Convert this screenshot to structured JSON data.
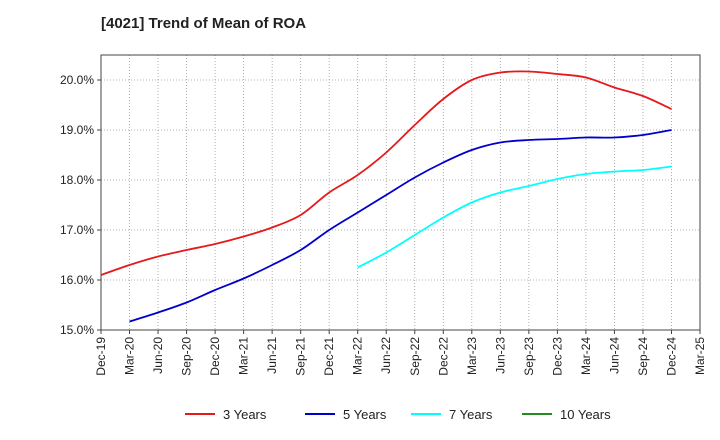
{
  "chart_data": {
    "type": "line",
    "title": "[4021]  Trend of Mean of ROA",
    "xlabel": "",
    "ylabel": "",
    "ylim": [
      15.0,
      20.5
    ],
    "yticks": [
      15.0,
      16.0,
      17.0,
      18.0,
      19.0,
      20.0
    ],
    "ytick_labels": [
      "15.0%",
      "16.0%",
      "17.0%",
      "18.0%",
      "19.0%",
      "20.0%"
    ],
    "categories": [
      "Dec-19",
      "Mar-20",
      "Jun-20",
      "Sep-20",
      "Dec-20",
      "Mar-21",
      "Jun-21",
      "Sep-21",
      "Dec-21",
      "Mar-22",
      "Jun-22",
      "Sep-22",
      "Dec-22",
      "Mar-23",
      "Jun-23",
      "Sep-23",
      "Dec-23",
      "Mar-24",
      "Jun-24",
      "Sep-24",
      "Dec-24",
      "Mar-25"
    ],
    "grid": true,
    "legend_position": "bottom",
    "series": [
      {
        "name": "3 Years",
        "color": "#e41a1c",
        "values": [
          16.1,
          16.3,
          16.47,
          16.6,
          16.72,
          16.87,
          17.05,
          17.3,
          17.75,
          18.1,
          18.55,
          19.1,
          19.62,
          20.0,
          20.15,
          20.17,
          20.12,
          20.05,
          19.85,
          19.68,
          19.42,
          null
        ]
      },
      {
        "name": "5 Years",
        "color": "#0000cd",
        "values": [
          null,
          15.17,
          15.35,
          15.55,
          15.8,
          16.03,
          16.3,
          16.6,
          17.0,
          17.35,
          17.7,
          18.05,
          18.35,
          18.6,
          18.75,
          18.8,
          18.82,
          18.85,
          18.85,
          18.9,
          19.0,
          null
        ]
      },
      {
        "name": "7 Years",
        "color": "#00ffff",
        "values": [
          null,
          null,
          null,
          null,
          null,
          null,
          null,
          null,
          null,
          16.25,
          16.55,
          16.9,
          17.25,
          17.55,
          17.75,
          17.88,
          18.02,
          18.12,
          18.17,
          18.2,
          18.27,
          null
        ]
      },
      {
        "name": "10 Years",
        "color": "#228b22",
        "values": [
          null,
          null,
          null,
          null,
          null,
          null,
          null,
          null,
          null,
          null,
          null,
          null,
          null,
          null,
          null,
          null,
          null,
          null,
          null,
          null,
          null,
          null
        ]
      }
    ]
  }
}
